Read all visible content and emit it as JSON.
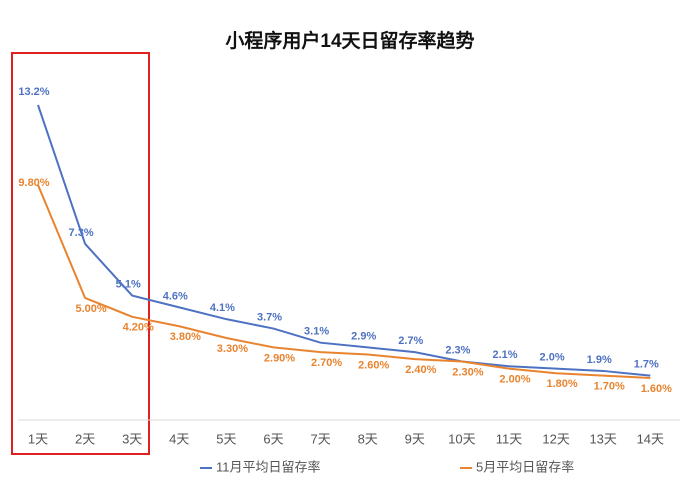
{
  "chart_data": {
    "type": "line",
    "title": "小程序用户14天日留存率趋势",
    "categories": [
      "1天",
      "2天",
      "3天",
      "4天",
      "5天",
      "6天",
      "7天",
      "8天",
      "9天",
      "10天",
      "11天",
      "12天",
      "13天",
      "14天"
    ],
    "series": [
      {
        "name": "11月平均日留存率",
        "color": "#4e72c2",
        "values": [
          13.2,
          7.3,
          5.1,
          4.6,
          4.1,
          3.7,
          3.1,
          2.9,
          2.7,
          2.3,
          2.1,
          2.0,
          1.9,
          1.7
        ],
        "value_labels": [
          "13.2%",
          "7.3%",
          "5.1%",
          "4.6%",
          "4.1%",
          "3.7%",
          "3.1%",
          "2.9%",
          "2.7%",
          "2.3%",
          "2.1%",
          "2.0%",
          "1.9%",
          "1.7%"
        ]
      },
      {
        "name": "5月平均日留存率",
        "color": "#e8842f",
        "values": [
          9.8,
          5.0,
          4.2,
          3.8,
          3.3,
          2.9,
          2.7,
          2.6,
          2.4,
          2.3,
          2.0,
          1.8,
          1.7,
          1.6
        ],
        "value_labels": [
          "9.80%",
          "5.00%",
          "4.20%",
          "3.80%",
          "3.30%",
          "2.90%",
          "2.70%",
          "2.60%",
          "2.40%",
          "2.30%",
          "2.00%",
          "1.80%",
          "1.70%",
          "1.60%"
        ]
      }
    ]
  }
}
